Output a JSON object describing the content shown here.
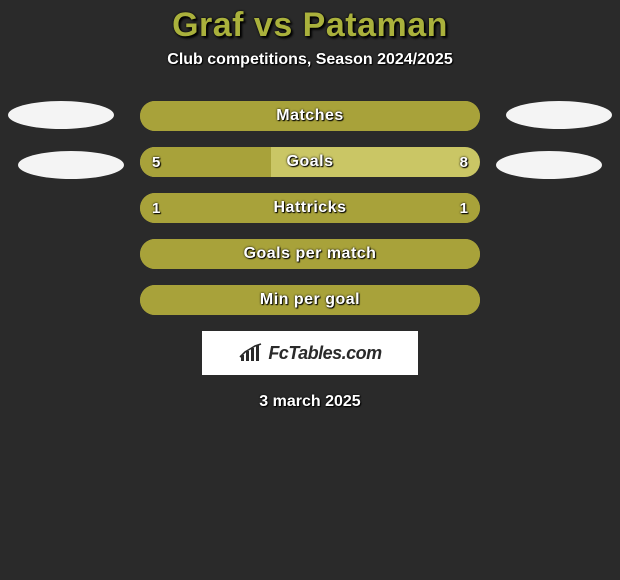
{
  "title": "Graf vs Pataman",
  "subtitle": "Club competitions, Season 2024/2025",
  "date": "3 march 2025",
  "logo_text": "FcTables.com",
  "colors": {
    "accent": "#aab13c",
    "bar_olive": "#a8a23a",
    "bar_olive_light": "#b5af47",
    "background": "#2a2a2a",
    "text": "#ffffff",
    "oval": "#f4f4f4",
    "logo_bg": "#ffffff"
  },
  "bars": [
    {
      "label": "Matches",
      "left_value": "",
      "right_value": "",
      "fill_pct": 100,
      "bg_color": "#a8a23a",
      "fill_color": "#a8a23a"
    },
    {
      "label": "Goals",
      "left_value": "5",
      "right_value": "8",
      "fill_pct": 38.5,
      "bg_color": "#cac665",
      "fill_color": "#a8a23a"
    },
    {
      "label": "Hattricks",
      "left_value": "1",
      "right_value": "1",
      "fill_pct": 100,
      "bg_color": "#a8a23a",
      "fill_color": "#a8a23a"
    },
    {
      "label": "Goals per match",
      "left_value": "",
      "right_value": "",
      "fill_pct": 100,
      "bg_color": "#a8a23a",
      "fill_color": "#a8a23a"
    },
    {
      "label": "Min per goal",
      "left_value": "",
      "right_value": "",
      "fill_pct": 100,
      "bg_color": "#a8a23a",
      "fill_color": "#a8a23a"
    }
  ]
}
